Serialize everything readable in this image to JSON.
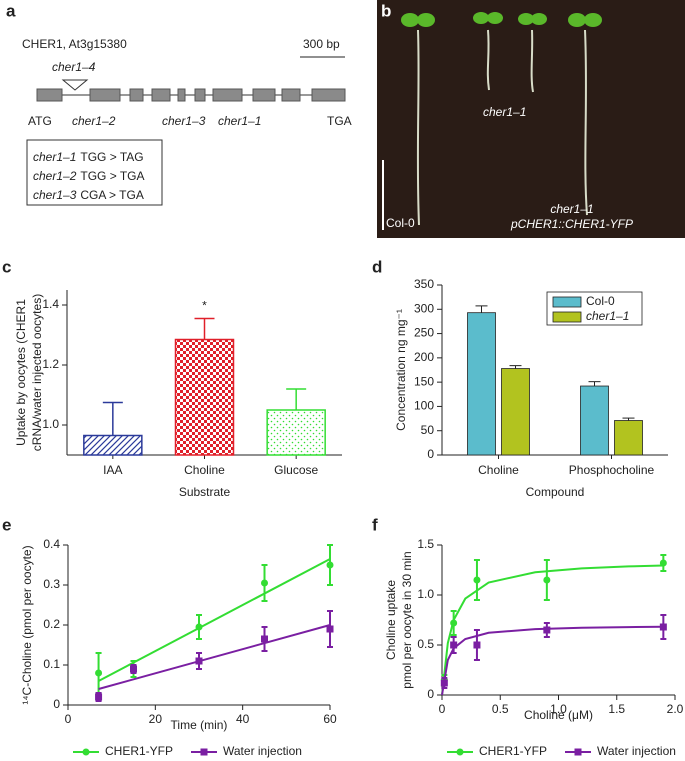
{
  "panel_a": {
    "label": "a",
    "gene": "CHER1, At3g15380",
    "scale": "300 bp",
    "insertion": "cher1–4",
    "start": "ATG",
    "stop": "TGA",
    "alleles": [
      "cher1–2",
      "cher1–3",
      "cher1–1"
    ],
    "mutations": [
      [
        "cher1–1",
        "TGG > TAG"
      ],
      [
        "cher1–2",
        "TGG > TGA"
      ],
      [
        "cher1–3",
        "CGA > TGA"
      ]
    ]
  },
  "panel_b": {
    "label": "b",
    "top_label": "cher1–1",
    "left_label": "Col-0",
    "right_label": [
      "cher1–1",
      "pCHER1::CHER1-YFP"
    ]
  },
  "chart_data": [
    {
      "type": "bar",
      "label": "c",
      "ylabel": [
        "Uptake by oocytes (CHER1",
        "cRNA/water injected oocytes)"
      ],
      "xlabel": "Substrate",
      "categories": [
        "IAA",
        "Choline",
        "Glucose"
      ],
      "values": [
        0.965,
        1.285,
        1.05
      ],
      "errors": [
        0.11,
        0.07,
        0.07
      ],
      "colors": [
        "#2b3a9a",
        "#e0202a",
        "#33dd33"
      ],
      "annotation": "*",
      "ylim": [
        0.9,
        1.45
      ],
      "yticks": [
        {
          "value": 1.0,
          "label": "1.0"
        },
        1.2,
        1.4
      ]
    },
    {
      "type": "bar",
      "label": "d",
      "ylabel": [
        "Concentration ng mg⁻¹"
      ],
      "xlabel": "Compound",
      "categories": [
        "Choline",
        "Phosphocholine"
      ],
      "series": [
        {
          "name": "Col-0",
          "color": "#5bbccc",
          "values": [
            293,
            142
          ],
          "errors": [
            14,
            9
          ]
        },
        {
          "name": "cher1–1",
          "color": "#b2c31f",
          "values": [
            178,
            71
          ],
          "errors": [
            6,
            5
          ]
        }
      ],
      "ylim": [
        0,
        350
      ],
      "yticks": [
        0,
        50,
        100,
        150,
        200,
        250,
        300,
        350
      ]
    },
    {
      "type": "scatter",
      "label": "e",
      "ylabel": [
        "¹⁴C-Choline (pmol per oocyte)"
      ],
      "xlabel": "Time (min)",
      "series": [
        {
          "name": "CHER1-YFP",
          "color": "#33dd33",
          "marker": "circle",
          "x": [
            7,
            15,
            30,
            45,
            60
          ],
          "values": [
            0.08,
            0.09,
            0.195,
            0.305,
            0.35
          ],
          "errors": [
            0.05,
            0.02,
            0.03,
            0.045,
            0.05
          ],
          "fit_x": [
            7,
            60
          ],
          "fit_values": [
            0.06,
            0.365
          ]
        },
        {
          "name": "Water injection",
          "color": "#7a1fa2",
          "marker": "square",
          "x": [
            7,
            15,
            30,
            45,
            60
          ],
          "values": [
            0.02,
            0.09,
            0.11,
            0.165,
            0.19
          ],
          "errors": [
            0.01,
            0.01,
            0.02,
            0.03,
            0.045
          ],
          "fit_x": [
            7,
            60
          ],
          "fit_values": [
            0.04,
            0.2
          ]
        }
      ],
      "xlim": [
        0,
        60
      ],
      "xticks": [
        0,
        20,
        40,
        60
      ],
      "ylim": [
        0,
        0.4
      ],
      "yticks": [
        0,
        0.1,
        0.2,
        0.3,
        0.4
      ]
    },
    {
      "type": "scatter",
      "label": "f",
      "ylabel": [
        "Choline uptake",
        "pmol per oocyte in 30 min"
      ],
      "xlabel": "Choline (μM)",
      "series": [
        {
          "name": "CHER1-YFP",
          "color": "#33dd33",
          "marker": "circle",
          "x": [
            0.02,
            0.1,
            0.3,
            0.9,
            1.9
          ],
          "values": [
            0.15,
            0.72,
            1.15,
            1.15,
            1.32
          ],
          "errors": [
            0.05,
            0.12,
            0.2,
            0.2,
            0.08
          ],
          "fit_x": [
            0,
            0.05,
            0.1,
            0.2,
            0.4,
            0.8,
            1.2,
            1.6,
            1.9
          ],
          "fit_values": [
            0,
            0.519,
            0.75,
            0.964,
            1.125,
            1.227,
            1.266,
            1.286,
            1.295
          ]
        },
        {
          "name": "Water injection",
          "color": "#7a1fa2",
          "marker": "square",
          "x": [
            0.02,
            0.1,
            0.3,
            0.9,
            1.9
          ],
          "values": [
            0.12,
            0.5,
            0.5,
            0.65,
            0.68
          ],
          "errors": [
            0.05,
            0.08,
            0.15,
            0.07,
            0.12
          ],
          "fit_x": [
            0,
            0.05,
            0.1,
            0.2,
            0.4,
            0.8,
            1.2,
            1.6,
            1.9
          ],
          "fit_values": [
            0,
            0.35,
            0.467,
            0.56,
            0.622,
            0.659,
            0.672,
            0.679,
            0.682
          ]
        }
      ],
      "xlim": [
        0,
        2
      ],
      "xticks": [
        0,
        0.5,
        {
          "value": 1,
          "label": "1.0"
        },
        1.5,
        {
          "value": 2,
          "label": "2.0"
        }
      ],
      "ylim": [
        0,
        1.5
      ],
      "yticks": [
        0,
        0.5,
        {
          "value": 1,
          "label": "1.0"
        },
        1.5
      ]
    }
  ]
}
